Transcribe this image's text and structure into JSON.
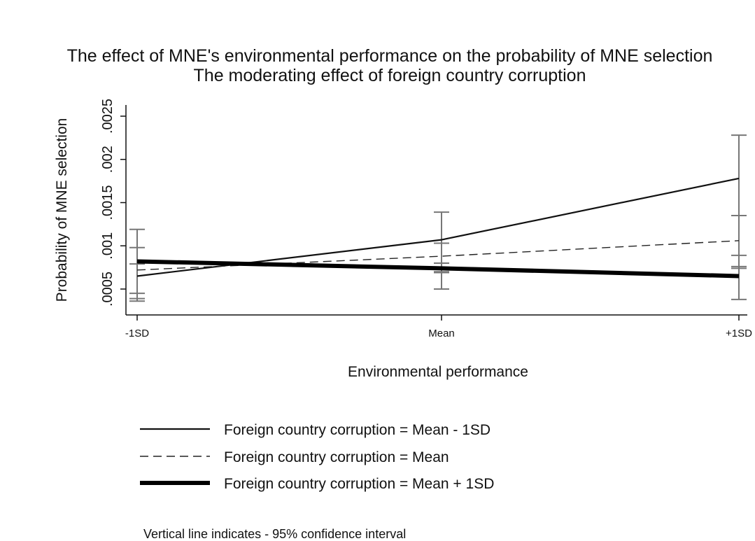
{
  "chart_data": {
    "type": "line",
    "title": "The effect of MNE's environmental performance on the probability of MNE selection",
    "subtitle": "The moderating effect of foreign country corruption",
    "xlabel": "Environmental performance",
    "ylabel": "Probability of MNE selection",
    "categories": [
      "-1SD",
      "Mean",
      "+1SD"
    ],
    "yticks": [
      ".0005",
      ".001",
      ".0015",
      ".002",
      ".0025"
    ],
    "ytick_values": [
      0.0005,
      0.001,
      0.0015,
      0.002,
      0.0025
    ],
    "ylim": [
      0.00035,
      0.0027
    ],
    "grid": false,
    "legend_position": "bottom",
    "series": [
      {
        "name": "Foreign country corruption = Mean - 1SD",
        "style": "thin-solid",
        "values": [
          0.00065,
          0.00107,
          0.00178
        ],
        "ci_low": [
          0.00036,
          0.0005,
          0.00038
        ],
        "ci_high": [
          0.00119,
          0.00139,
          0.00228
        ]
      },
      {
        "name": "Foreign country corruption = Mean",
        "style": "dashed",
        "values": [
          0.00072,
          0.00088,
          0.00106
        ],
        "ci_low": [
          0.00045,
          0.0007,
          0.00076
        ],
        "ci_high": [
          0.00098,
          0.00103,
          0.00135
        ]
      },
      {
        "name": "Foreign country corruption = Mean + 1SD",
        "style": "thick-solid",
        "values": [
          0.00082,
          0.00074,
          0.00065
        ],
        "ci_low": [
          0.00039,
          0.00069,
          0.00074
        ],
        "ci_high": [
          0.00079,
          0.0008,
          0.00089
        ]
      }
    ],
    "note": "Vertical line indicates - 95% confidence interval"
  }
}
